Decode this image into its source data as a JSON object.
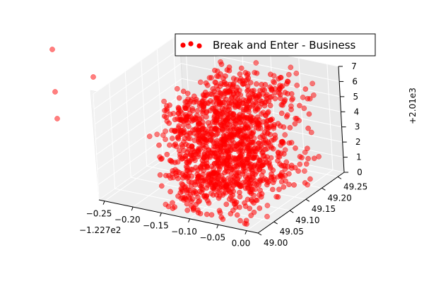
{
  "chart_data": {
    "type": "scatter",
    "projection": "3d",
    "series": [
      {
        "name": "Break and Enter - Business",
        "color": "#ff0000"
      }
    ],
    "legend": {
      "placement": "top-right",
      "label": "Break and Enter - Business"
    },
    "grid": true,
    "x_axis": {
      "ticks": [
        "−0.25",
        "−0.20",
        "−0.15",
        "−0.10",
        "−0.05",
        "0.00"
      ],
      "tick_values": [
        -0.25,
        -0.2,
        -0.15,
        -0.1,
        -0.05,
        0.0
      ],
      "offset_text": "−1.227e2",
      "range": [
        -0.26,
        0.02
      ]
    },
    "y_axis": {
      "ticks": [
        "49.00",
        "49.05",
        "49.10",
        "49.15",
        "49.20",
        "49.25"
      ],
      "tick_values": [
        49.0,
        49.05,
        49.1,
        49.15,
        49.2,
        49.25
      ],
      "range": [
        49.0,
        49.27
      ]
    },
    "z_axis": {
      "ticks": [
        "0",
        "1",
        "2",
        "3",
        "4",
        "5",
        "6",
        "7"
      ],
      "tick_values": [
        0,
        1,
        2,
        3,
        4,
        5,
        6,
        7
      ],
      "offset_text": "+2.01e3",
      "range": [
        0,
        7
      ]
    },
    "points_note_values_x": [
      -0.16,
      -0.14,
      -0.12,
      -0.1,
      -0.08,
      -0.06,
      -0.04,
      -0.02
    ],
    "outliers": [
      {
        "x": -0.48,
        "y": 49.1,
        "z": 9.5
      },
      {
        "x": -0.4,
        "y": 49.08,
        "z": 8.4
      },
      {
        "x": -0.44,
        "y": 49.02,
        "z": 7.2
      },
      {
        "x": -0.38,
        "y": 49.0,
        "z": 5.6
      }
    ]
  }
}
